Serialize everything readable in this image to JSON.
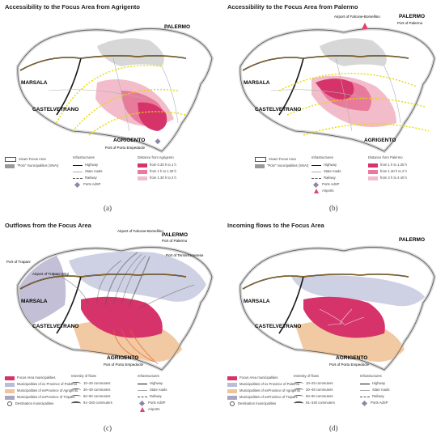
{
  "panels": [
    {
      "title": "Accessibility to the Focus Area from Agrigento",
      "letter": "(a)",
      "cities": {
        "palermo": "PALERMO",
        "marsala": "MARSALA",
        "castelvetrano": "CASTELVETRANO",
        "agrigento": "AGRIGENTO",
        "agrigento_port": "Port of Porto Empedocle"
      },
      "legend": {
        "col1": [
          "Sicani Focus Area",
          "\"Polo\" municipalities (SNAI)"
        ],
        "infra_title": "Infrastructures",
        "infra": [
          "Highway",
          "State roads",
          "Railway",
          "Ports AdSP"
        ],
        "dist_title": "Distance from Agrigento",
        "dist": [
          "from 0.30 h to 1 h",
          "from 1 h to 1.30 h",
          "from 1.30 h to 2 h"
        ]
      }
    },
    {
      "title": "Accessibility to the Focus Area from Palermo",
      "letter": "(b)",
      "cities": {
        "palermo": "PALERMO",
        "palermo_port": "Port of Palermo",
        "airport": "Airport of Falcone-Borsellino",
        "marsala": "MARSALA",
        "castelvetrano": "CASTELVETRANO",
        "agrigento": "AGRIGENTO"
      },
      "legend": {
        "col1": [
          "Sicani Focus Area",
          "\"Polo\" municipalities (SNAI)"
        ],
        "infra_title": "Infrastructures",
        "infra": [
          "Highway",
          "State roads",
          "Railway",
          "Ports AdSP",
          "Airports"
        ],
        "dist_title": "Distance from Palermo",
        "dist": [
          "from 1 h to 1.30 h",
          "from 1.30 h to 2 h",
          "from 2 h to 2.40 h"
        ]
      }
    },
    {
      "title": "Outflows from the Focus Area",
      "letter": "(c)",
      "cities": {
        "palermo": "PALERMO",
        "palermo_port": "Port of Palermo",
        "airport": "Airport of Falcone-Borsellino",
        "trapani_port": "Port of Trapani",
        "trapani_airport": "Airport of Trapani Birgi",
        "termini": "Port of Termini Imerese",
        "marsala": "MARSALA",
        "castelvetrano": "CASTELVETRANO",
        "agrigento": "AGRIGENTO",
        "agrigento_port": "Port of Porto Empedocle"
      },
      "legend": {
        "col1": [
          "Focus Area municipalities",
          "Municipalities of ex Province of Palermo",
          "Municipalities of exProvince of Agrigento",
          "Municipalities of exProvince of Trapani",
          "Destination municipalities"
        ],
        "flow_title": "Intensity of flows",
        "flows": [
          "10–29 commuters",
          "30–49 commuters",
          "50–90 commuters",
          "91–340 commuters"
        ],
        "infra_title": "Infrastructures",
        "infra": [
          "Highway",
          "State roads",
          "Railway",
          "Ports AdSP",
          "Airports"
        ]
      }
    },
    {
      "title": "Incoming flows to the Focus Area",
      "letter": "(d)",
      "cities": {
        "palermo": "PALERMO",
        "marsala": "MARSALA",
        "castelvetrano": "CASTELVETRANO",
        "agrigento": "AGRIGENTO",
        "agrigento_port": "Port of Porto Empedocle"
      },
      "legend": {
        "col1": [
          "Focus Area municipalities",
          "Municipalities of ex Province of Palermo",
          "Municipalities of exProvince of Agrigento",
          "Municipalities of exProvince of Trapani",
          "Destination municipalities"
        ],
        "flow_title": "Intensity of flows",
        "flows": [
          "10–29 commuters",
          "30–49 commuters",
          "50–90 commuters",
          "91–340 commuters"
        ],
        "infra_title": "Infrastructures",
        "infra": [
          "Highway",
          "State roads",
          "Railway",
          "Ports AdSP"
        ]
      }
    }
  ],
  "colors": {
    "focus_dark": "#d6336a",
    "focus_mid": "#e87a9c",
    "focus_light": "#f3bccb",
    "palermo_prov": "#b9bdd8",
    "agrigento_prov": "#f0c49a",
    "trapani_prov": "#a8a4c4",
    "highway": "#1a1a1a",
    "highway_accent": "#e8a020",
    "polo": "#9a9a9a",
    "isochrone": "#e8d800"
  }
}
